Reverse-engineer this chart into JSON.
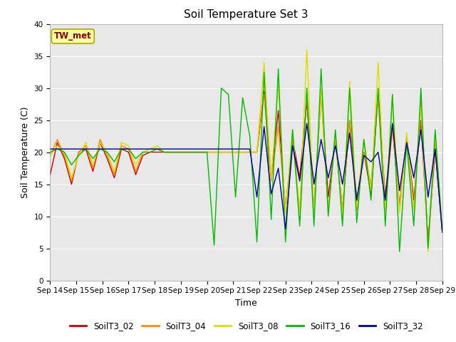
{
  "title": "Soil Temperature Set 3",
  "xlabel": "Time",
  "ylabel": "Soil Temperature (C)",
  "ylim": [
    0,
    40
  ],
  "x_tick_labels": [
    "Sep 14",
    "Sep 15",
    "Sep 16",
    "Sep 17",
    "Sep 18",
    "Sep 19",
    "Sep 20",
    "Sep 21",
    "Sep 22",
    "Sep 23",
    "Sep 24",
    "Sep 25",
    "Sep 26",
    "Sep 27",
    "Sep 28",
    "Sep 29"
  ],
  "annotation_text": "TW_met",
  "annotation_color": "#8B0000",
  "annotation_bg": "#FFFFA0",
  "annotation_edge": "#AAAA00",
  "series_colors": {
    "SoilT3_02": "#CC0000",
    "SoilT3_04": "#FF8C00",
    "SoilT3_08": "#DDDD00",
    "SoilT3_16": "#00BB00",
    "SoilT3_32": "#000099"
  },
  "bg_color": "#E8E8E8",
  "grid_color": "#FFFFFF",
  "title_fontsize": 11,
  "label_fontsize": 9,
  "tick_fontsize": 7.5,
  "SoilT3_02": [
    16.5,
    21.5,
    19.0,
    15.0,
    20.0,
    20.5,
    17.0,
    21.5,
    19.0,
    16.0,
    20.5,
    20.0,
    16.5,
    19.5,
    20.0,
    20.0,
    20.0,
    20.0,
    20.0,
    20.0,
    20.0,
    20.0,
    20.0,
    20.0,
    20.0,
    20.0,
    20.0,
    20.0,
    20.0,
    20.0,
    29.5,
    16.0,
    26.5,
    11.0,
    22.0,
    16.0,
    28.0,
    11.0,
    29.5,
    13.0,
    22.0,
    11.0,
    25.0,
    12.5,
    20.0,
    13.5,
    29.0,
    13.0,
    24.0,
    11.5,
    22.5,
    12.5,
    25.0,
    6.0,
    20.5,
    7.5
  ],
  "SoilT3_04": [
    19.5,
    22.0,
    19.5,
    15.5,
    20.0,
    21.0,
    17.5,
    22.0,
    19.5,
    16.5,
    21.0,
    20.5,
    17.0,
    20.0,
    20.5,
    20.5,
    20.0,
    20.0,
    20.0,
    20.0,
    20.0,
    20.0,
    20.0,
    20.0,
    20.0,
    20.0,
    20.0,
    20.0,
    20.0,
    20.0,
    29.0,
    15.5,
    24.0,
    11.0,
    22.0,
    11.0,
    29.0,
    11.0,
    29.0,
    11.0,
    22.0,
    11.0,
    25.0,
    11.0,
    20.0,
    15.0,
    28.5,
    11.0,
    24.0,
    11.0,
    22.0,
    11.0,
    28.0,
    5.0,
    22.0,
    7.5
  ],
  "SoilT3_08": [
    19.5,
    21.0,
    20.0,
    16.0,
    19.5,
    21.5,
    18.0,
    21.5,
    20.0,
    17.0,
    21.5,
    21.0,
    18.0,
    20.0,
    20.5,
    21.0,
    20.0,
    20.0,
    20.0,
    20.0,
    20.0,
    20.0,
    20.0,
    20.0,
    20.0,
    20.0,
    20.0,
    20.0,
    20.0,
    20.0,
    34.0,
    16.0,
    30.5,
    10.5,
    23.5,
    10.5,
    36.0,
    10.5,
    30.0,
    10.5,
    23.0,
    10.0,
    31.0,
    11.5,
    22.0,
    14.0,
    34.0,
    11.0,
    29.0,
    10.5,
    23.0,
    11.0,
    27.0,
    4.5,
    23.0,
    7.5
  ],
  "SoilT3_16": [
    20.0,
    20.5,
    20.0,
    18.0,
    19.5,
    20.5,
    19.0,
    20.5,
    20.0,
    18.5,
    20.5,
    20.5,
    19.0,
    20.0,
    20.0,
    20.5,
    20.0,
    20.0,
    20.0,
    20.0,
    20.0,
    20.0,
    20.0,
    5.5,
    30.0,
    29.0,
    13.0,
    28.5,
    22.5,
    6.0,
    32.5,
    9.5,
    33.0,
    6.0,
    23.5,
    8.5,
    30.0,
    8.5,
    33.0,
    10.0,
    23.5,
    8.5,
    30.0,
    9.0,
    22.0,
    12.5,
    30.0,
    8.5,
    29.0,
    4.5,
    21.5,
    8.5,
    30.0,
    5.0,
    23.5,
    7.5
  ],
  "SoilT3_32": [
    20.5,
    20.5,
    20.5,
    20.5,
    20.5,
    20.5,
    20.5,
    20.5,
    20.5,
    20.5,
    20.5,
    20.5,
    20.5,
    20.5,
    20.5,
    20.5,
    20.5,
    20.5,
    20.5,
    20.5,
    20.5,
    20.5,
    20.5,
    20.5,
    20.5,
    20.5,
    20.5,
    20.5,
    20.5,
    13.0,
    24.0,
    13.5,
    17.5,
    8.0,
    21.0,
    15.5,
    24.5,
    15.0,
    22.0,
    16.0,
    21.0,
    15.0,
    23.0,
    12.5,
    19.5,
    18.5,
    20.0,
    12.5,
    24.5,
    14.0,
    21.5,
    16.0,
    23.5,
    13.0,
    20.5,
    7.5
  ]
}
